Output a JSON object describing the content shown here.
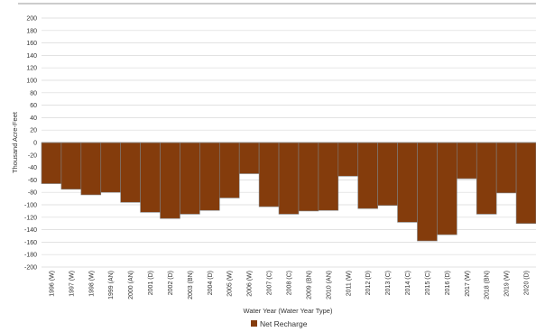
{
  "chart_data": {
    "type": "bar",
    "title": "",
    "xlabel": "Water Year (Water Year Type)",
    "ylabel": "Thousand Acre-Feet",
    "ylim": [
      -200,
      200
    ],
    "ytick_step": 20,
    "grid": true,
    "legend_position": "bottom",
    "categories": [
      "1996 (W)",
      "1997 (W)",
      "1998 (W)",
      "1999 (AN)",
      "2000 (AN)",
      "2001 (D)",
      "2002 (D)",
      "2003 (BN)",
      "2004 (D)",
      "2005 (W)",
      "2006 (W)",
      "2007 (C)",
      "2008 (C)",
      "2009 (BN)",
      "2010 (AN)",
      "2011 (W)",
      "2012 (D)",
      "2013 (C)",
      "2014 (C)",
      "2015 (C)",
      "2016 (D)",
      "2017 (W)",
      "2018 (BN)",
      "2019 (W)",
      "2020 (D)"
    ],
    "series": [
      {
        "name": "Net Recharge",
        "color": "#843C0C",
        "values": [
          -66,
          -75,
          -84,
          -80,
          -96,
          -112,
          -122,
          -115,
          -109,
          -89,
          -50,
          -103,
          -115,
          -110,
          -109,
          -54,
          -106,
          -101,
          -128,
          -158,
          -148,
          -58,
          -115,
          -81,
          -130
        ]
      }
    ]
  }
}
